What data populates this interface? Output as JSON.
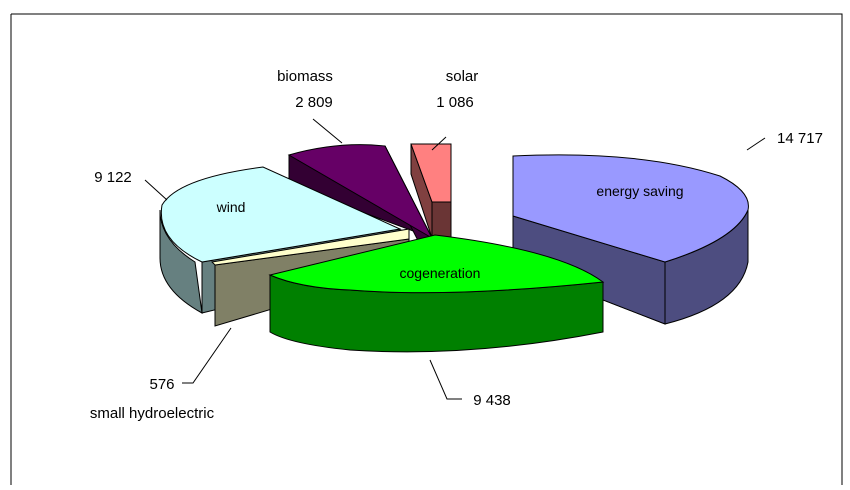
{
  "chart_data": {
    "type": "pie",
    "variant": "exploded-3d",
    "categories": [
      "energy saving",
      "cogeneration",
      "small hydroelectric",
      "wind",
      "biomass",
      "solar"
    ],
    "values": [
      14717,
      9438,
      576,
      9122,
      2809,
      1086
    ],
    "value_labels": [
      "14 717",
      "9 438",
      "576",
      "9 122",
      "2 809",
      "1 086"
    ],
    "colors": {
      "energy saving": {
        "top": "#9999ff",
        "side": "#4d4d80"
      },
      "cogeneration": {
        "top": "#00ff00",
        "side": "#008000"
      },
      "small hydroelectric": {
        "top": "#ffffcc",
        "side": "#808066"
      },
      "wind": {
        "top": "#ccffff",
        "side": "#668080"
      },
      "biomass": {
        "top": "#660066",
        "side": "#330033"
      },
      "solar": {
        "top": "#ff8080",
        "side": "#804040"
      }
    },
    "title": "",
    "legend": "none"
  }
}
